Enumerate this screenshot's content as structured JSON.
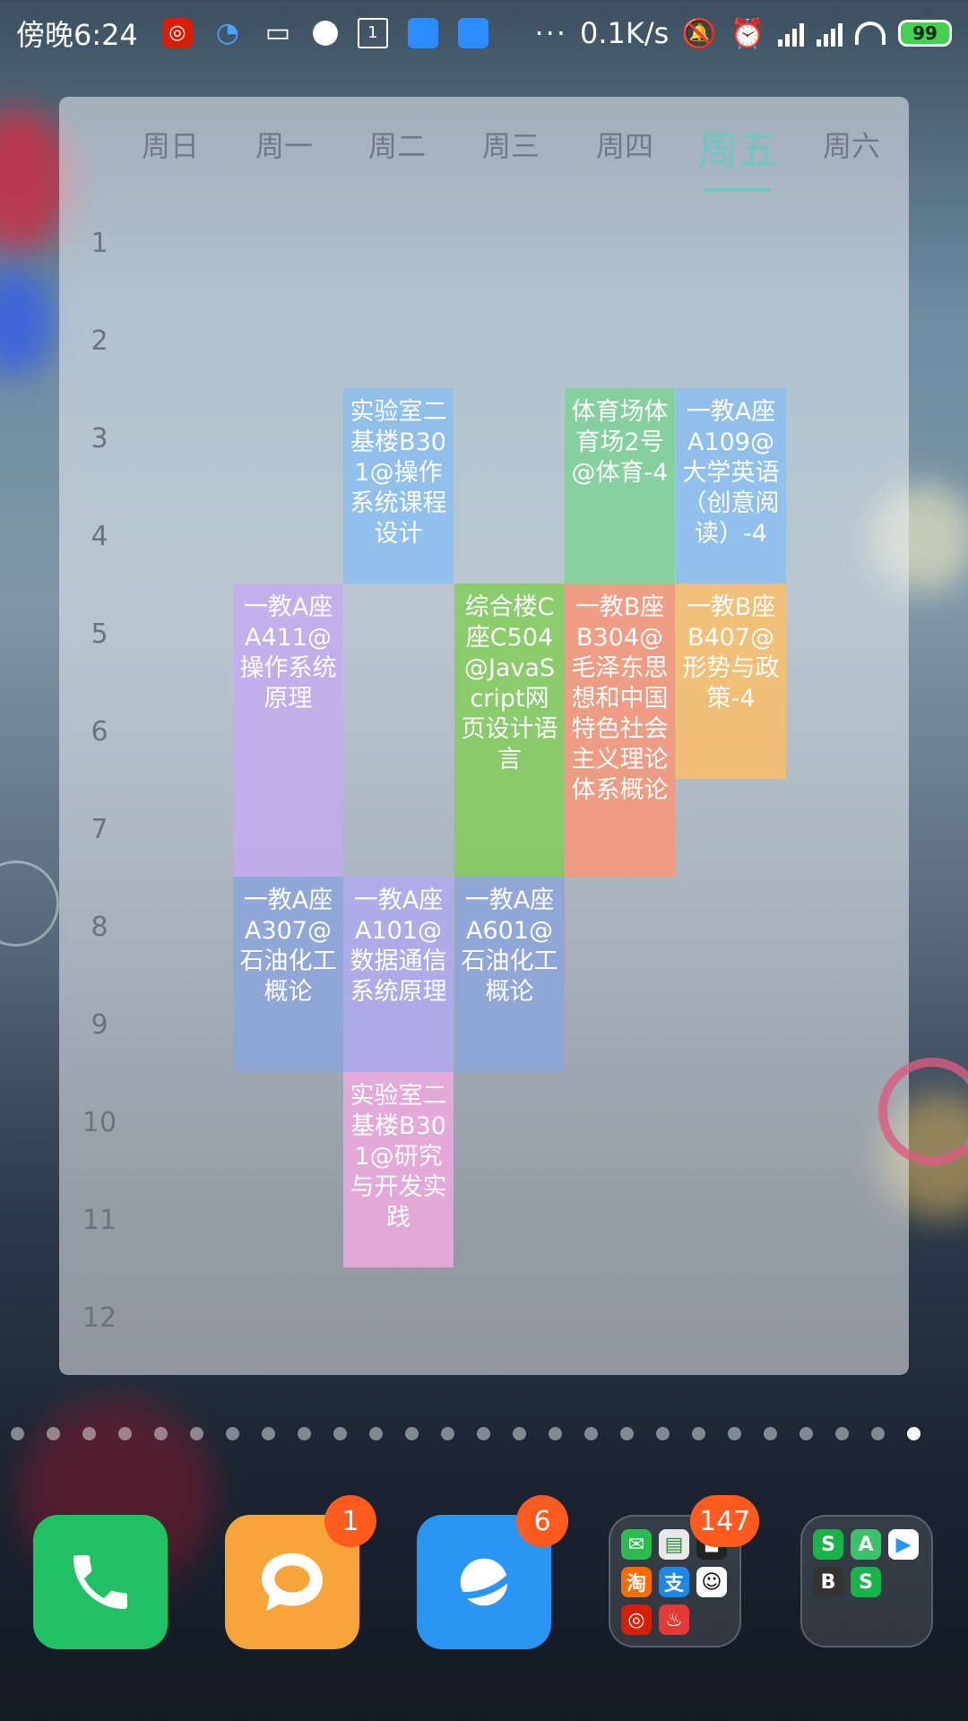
{
  "status_bar": {
    "time": "傍晚6:24",
    "net_speed": "0.1K/s",
    "battery": "99",
    "ellipsis": "···"
  },
  "widget": {
    "days": [
      "周日",
      "周一",
      "周二",
      "周三",
      "周四",
      "周五",
      "周六"
    ],
    "active_day": "周五",
    "periods": [
      "1",
      "2",
      "3",
      "4",
      "5",
      "6",
      "7",
      "8",
      "9",
      "10",
      "11",
      "12"
    ],
    "courses": [
      {
        "day": "周二",
        "text": "实验室二基楼B301@操作系统课程设计",
        "color": "blue"
      },
      {
        "day": "周四",
        "text": "体育场体育场2号@体育-4",
        "color": "green"
      },
      {
        "day": "周五",
        "text": "一教A座A109@大学英语（创意阅读）-4",
        "color": "blue"
      },
      {
        "day": "周一",
        "text": "一教A座A411@操作系统原理",
        "color": "purple"
      },
      {
        "day": "周三",
        "text": "综合楼C座C504@JavaScript网页设计语言",
        "color": "lime"
      },
      {
        "day": "周四",
        "text": "一教B座B304@毛泽东思想和中国特色社会主义理论体系概论",
        "color": "salmon"
      },
      {
        "day": "周五",
        "text": "一教B座B407@形势与政策-4",
        "color": "orange"
      },
      {
        "day": "周一",
        "text": "一教A座A307@石油化工概论",
        "color": "slate"
      },
      {
        "day": "周二",
        "text": "一教A座A101@数据通信系统原理",
        "color": "lavender"
      },
      {
        "day": "周三",
        "text": "一教A座A601@石油化工概论",
        "color": "slate"
      },
      {
        "day": "周二",
        "text": "实验室二基楼B301@研究与开发实践",
        "color": "pink"
      }
    ]
  },
  "dock": {
    "apps": [
      {
        "name": "phone",
        "icon": "phone-icon"
      },
      {
        "name": "messages",
        "icon": "chat-bubble-icon",
        "badge": "1"
      },
      {
        "name": "browser",
        "icon": "planet-icon",
        "badge": "6"
      },
      {
        "name": "folder-1",
        "icon": "folder-icon",
        "badge": "147"
      },
      {
        "name": "folder-2",
        "icon": "folder-icon"
      }
    ]
  }
}
